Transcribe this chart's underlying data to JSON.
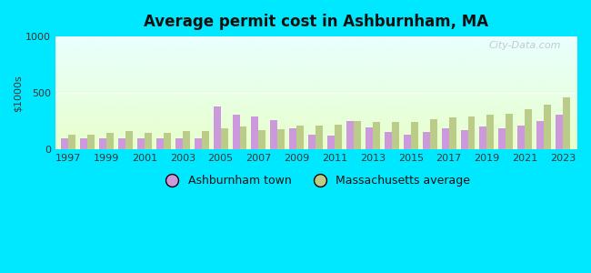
{
  "title": "Average permit cost in Ashburnham, MA",
  "ylabel": "$1000s",
  "years": [
    1997,
    1998,
    1999,
    2000,
    2001,
    2002,
    2003,
    2004,
    2005,
    2006,
    2007,
    2008,
    2009,
    2010,
    2011,
    2012,
    2013,
    2014,
    2015,
    2016,
    2017,
    2018,
    2019,
    2020,
    2021,
    2022,
    2023
  ],
  "ashburnham": [
    100,
    95,
    100,
    95,
    100,
    95,
    100,
    95,
    380,
    310,
    290,
    260,
    190,
    130,
    120,
    250,
    195,
    155,
    130,
    155,
    185,
    175,
    200,
    185,
    215,
    250,
    310
  ],
  "massachusetts": [
    130,
    130,
    145,
    160,
    150,
    150,
    160,
    160,
    190,
    200,
    175,
    180,
    210,
    215,
    220,
    255,
    240,
    240,
    245,
    270,
    285,
    290,
    305,
    315,
    360,
    400,
    460
  ],
  "bar_color_ashburnham": "#cc99dd",
  "bar_color_massachusetts": "#bbcc88",
  "ylim": [
    0,
    1000
  ],
  "yticks": [
    0,
    500,
    1000
  ],
  "bg_top": "#e8ffff",
  "bg_bottom": "#e8ffcc",
  "outer_bg": "#00e8ff",
  "bar_width": 0.38,
  "legend_ashburnham": "Ashburnham town",
  "legend_massachusetts": "Massachusetts average",
  "watermark": "City-Data.com"
}
